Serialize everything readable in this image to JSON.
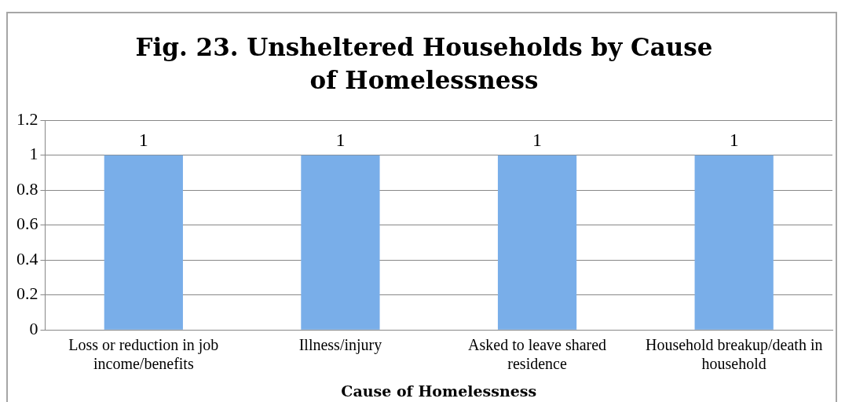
{
  "chart_data": {
    "type": "bar",
    "title": "Fig. 23. Unsheltered Households by Cause of Homelessness",
    "xlabel": "Cause of Homelessness",
    "categories": [
      "Loss or reduction in job income/benefits",
      "Illness/injury",
      "Asked to leave shared residence",
      "Household breakup/death in household"
    ],
    "values": [
      1,
      1,
      1,
      1
    ],
    "color": "#79aee9",
    "ylim": [
      0,
      1.2
    ],
    "yticks": [
      0,
      0.2,
      0.4,
      0.6,
      0.8,
      1,
      1.2
    ],
    "grid": "y",
    "legend": false,
    "data_labels": true
  }
}
